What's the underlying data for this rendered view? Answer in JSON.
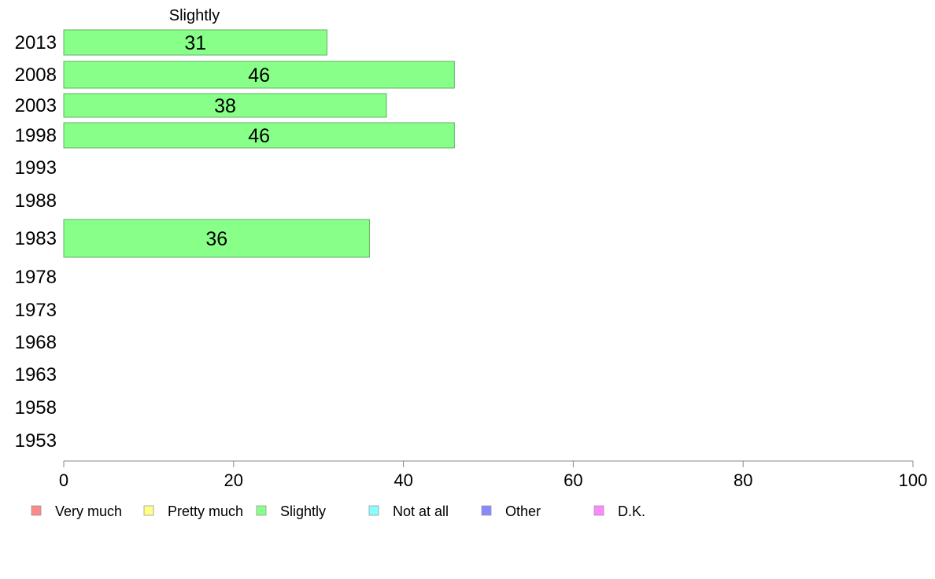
{
  "chart_data": {
    "type": "bar",
    "orientation": "horizontal",
    "column_header": "Slightly",
    "categories": [
      "2013",
      "2008",
      "2003",
      "1998",
      "1993",
      "1988",
      "1983",
      "1978",
      "1973",
      "1968",
      "1963",
      "1958",
      "1953"
    ],
    "series": [
      {
        "name": "Slightly",
        "values": [
          31,
          46,
          38,
          46,
          null,
          null,
          36,
          null,
          null,
          null,
          null,
          null,
          null
        ],
        "color": "#88ff88"
      }
    ],
    "data_labels": [
      "31",
      "46",
      "38",
      "46",
      "",
      "",
      "36",
      "",
      "",
      "",
      "",
      "",
      ""
    ],
    "xlim": [
      0,
      100
    ],
    "xticks": [
      0,
      20,
      40,
      60,
      80,
      100
    ],
    "grid": false,
    "legend": {
      "position": "bottom",
      "items": [
        {
          "label": "Very much",
          "color": "#ff8888"
        },
        {
          "label": "Pretty much",
          "color": "#ffff88"
        },
        {
          "label": "Slightly",
          "color": "#88ff88"
        },
        {
          "label": "Not at all",
          "color": "#88ffff"
        },
        {
          "label": "Other",
          "color": "#8888ff"
        },
        {
          "label": "D.K.",
          "color": "#ff88ff"
        }
      ]
    }
  }
}
